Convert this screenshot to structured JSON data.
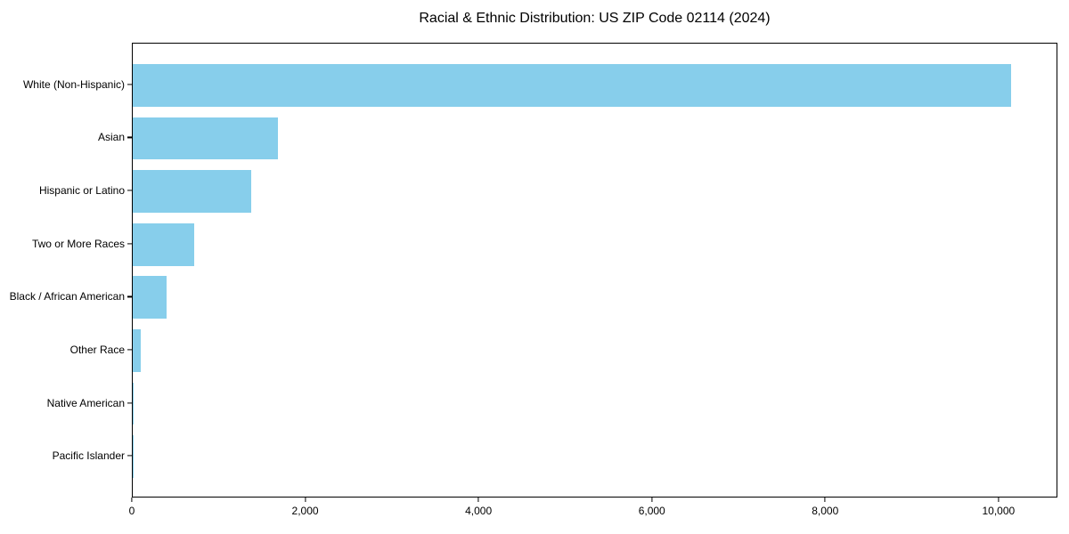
{
  "page": {
    "background": "#ffffff",
    "text_color": "#000000"
  },
  "chart_data": {
    "type": "bar",
    "orientation": "horizontal",
    "title": "Racial & Ethnic Distribution: US ZIP Code 02114 (2024)",
    "categories": [
      "White (Non-Hispanic)",
      "Asian",
      "Hispanic or Latino",
      "Two or More Races",
      "Black / African American",
      "Other Race",
      "Native American",
      "Pacific Islander"
    ],
    "values": [
      10150,
      1675,
      1370,
      710,
      390,
      95,
      12,
      4
    ],
    "bar_color": "#87CEEB",
    "spine_color": "#000000",
    "xlabel": "",
    "ylabel": "",
    "xlim": [
      0,
      10680
    ],
    "x_ticks": [
      0,
      2000,
      4000,
      6000,
      8000,
      10000
    ],
    "x_tick_labels": [
      "0",
      "2,000",
      "4,000",
      "6,000",
      "8,000",
      "10,000"
    ],
    "grid": false,
    "legend": null,
    "bar_height_fraction": 0.8
  }
}
